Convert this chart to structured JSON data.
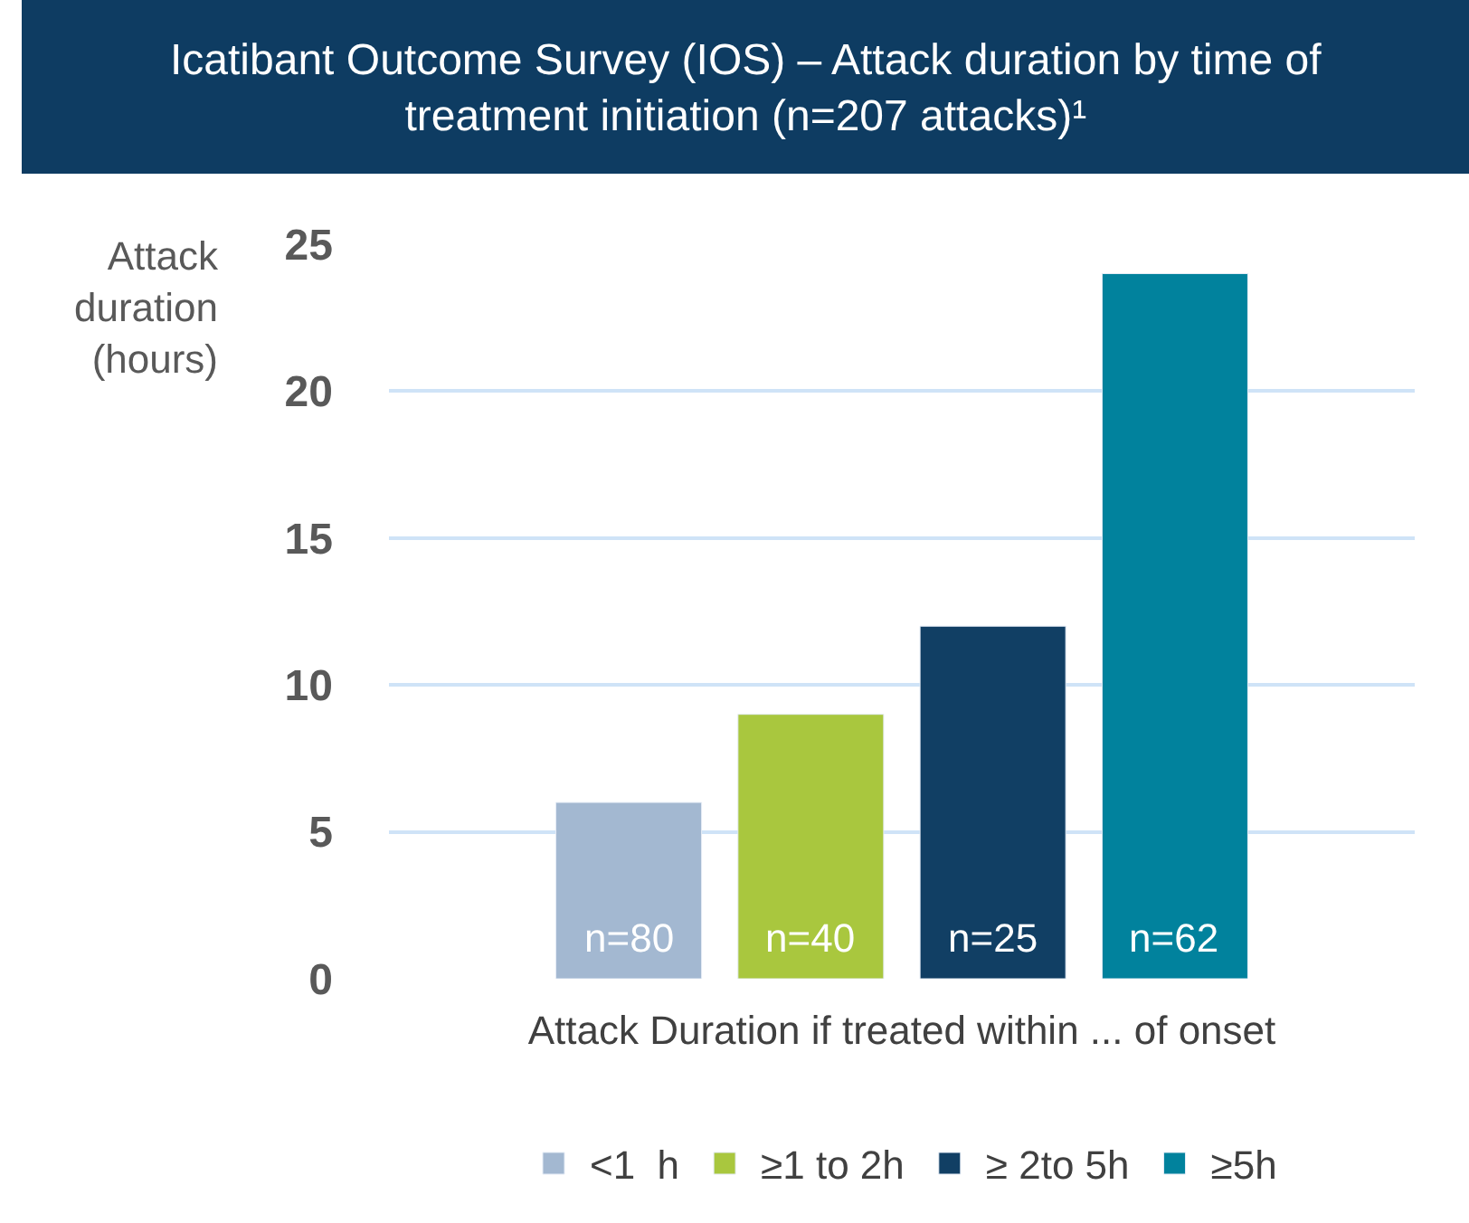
{
  "chart_data": {
    "type": "bar",
    "title": "Icatibant Outcome Survey (IOS) – Attack duration by time of treatment initiation (n=207 attacks)¹",
    "xlabel": "Attack Duration if treated within ... of onset",
    "ylabel": "Attack duration (hours)",
    "categories": [
      null
    ],
    "series": [
      {
        "name": "<1  h",
        "color": "#a3b8d1",
        "values": [
          6
        ]
      },
      {
        "name": "≥1 to 2h",
        "color": "#a9c73e",
        "values": [
          9
        ]
      },
      {
        "name": "≥ 2to 5h",
        "color": "#113f64",
        "values": [
          12
        ]
      },
      {
        "name": "≥5h",
        "color": "#01829d",
        "values": [
          24
        ]
      }
    ],
    "annotations": [
      "n=80",
      "n=40",
      "n=25",
      "n=62"
    ],
    "ylim": [
      0,
      25
    ],
    "yticks": [
      0,
      5,
      10,
      15,
      20,
      25
    ],
    "grid": "y",
    "legend": "bottom"
  }
}
